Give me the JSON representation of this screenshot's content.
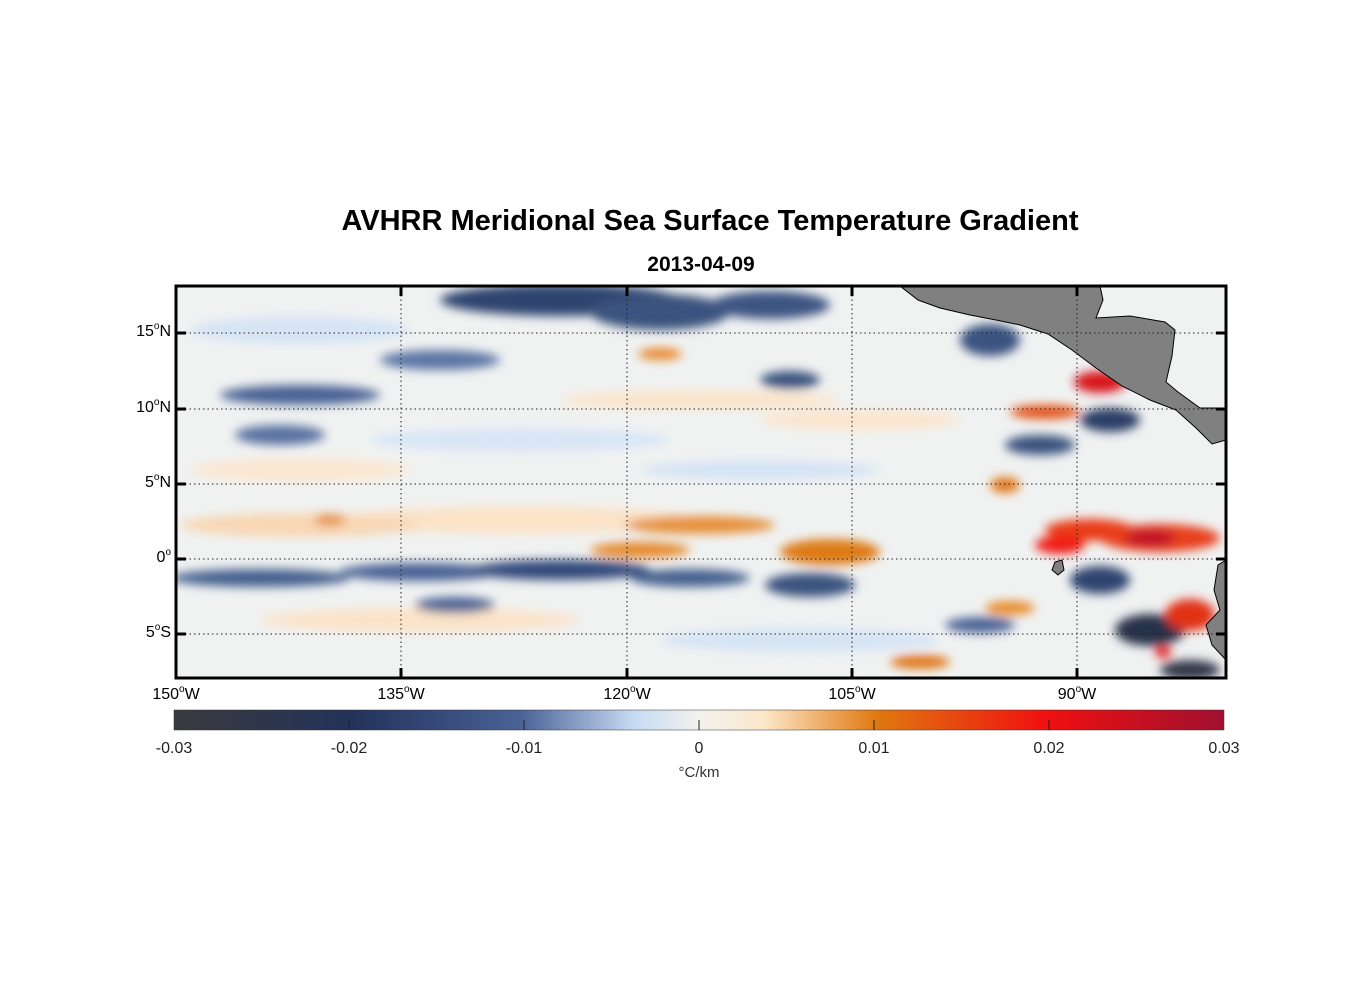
{
  "title": "AVHRR Meridional Sea Surface Temperature Gradient",
  "subtitle": "2013-04-09",
  "map": {
    "lat_labels": [
      {
        "deg": "15",
        "hemi": "N",
        "value": 15
      },
      {
        "deg": "10",
        "hemi": "N",
        "value": 10
      },
      {
        "deg": "5",
        "hemi": "N",
        "value": 5
      },
      {
        "deg": "0",
        "hemi": "",
        "value": 0
      },
      {
        "deg": "5",
        "hemi": "S",
        "value": -5
      }
    ],
    "lon_labels": [
      {
        "deg": "150",
        "hemi": "W",
        "value": -150
      },
      {
        "deg": "135",
        "hemi": "W",
        "value": -135
      },
      {
        "deg": "120",
        "hemi": "W",
        "value": -120
      },
      {
        "deg": "105",
        "hemi": "W",
        "value": -105
      },
      {
        "deg": "90",
        "hemi": "W",
        "value": -90
      }
    ],
    "lon_range": [
      -150,
      -80
    ],
    "lat_range": [
      -8,
      18
    ],
    "gridlines": true,
    "land_color": "#808080"
  },
  "colorbar": {
    "ticks": [
      "-0.03",
      "-0.02",
      "-0.01",
      "0",
      "0.01",
      "0.02",
      "0.03"
    ],
    "range": [
      -0.03,
      0.03
    ],
    "unit": "°C/km",
    "colors": [
      "#3a3a3e",
      "#22325a",
      "#4a6296",
      "#c8dcf4",
      "#f2f2ee",
      "#fde8cc",
      "#e07810",
      "#f01010",
      "#a01030"
    ]
  }
}
